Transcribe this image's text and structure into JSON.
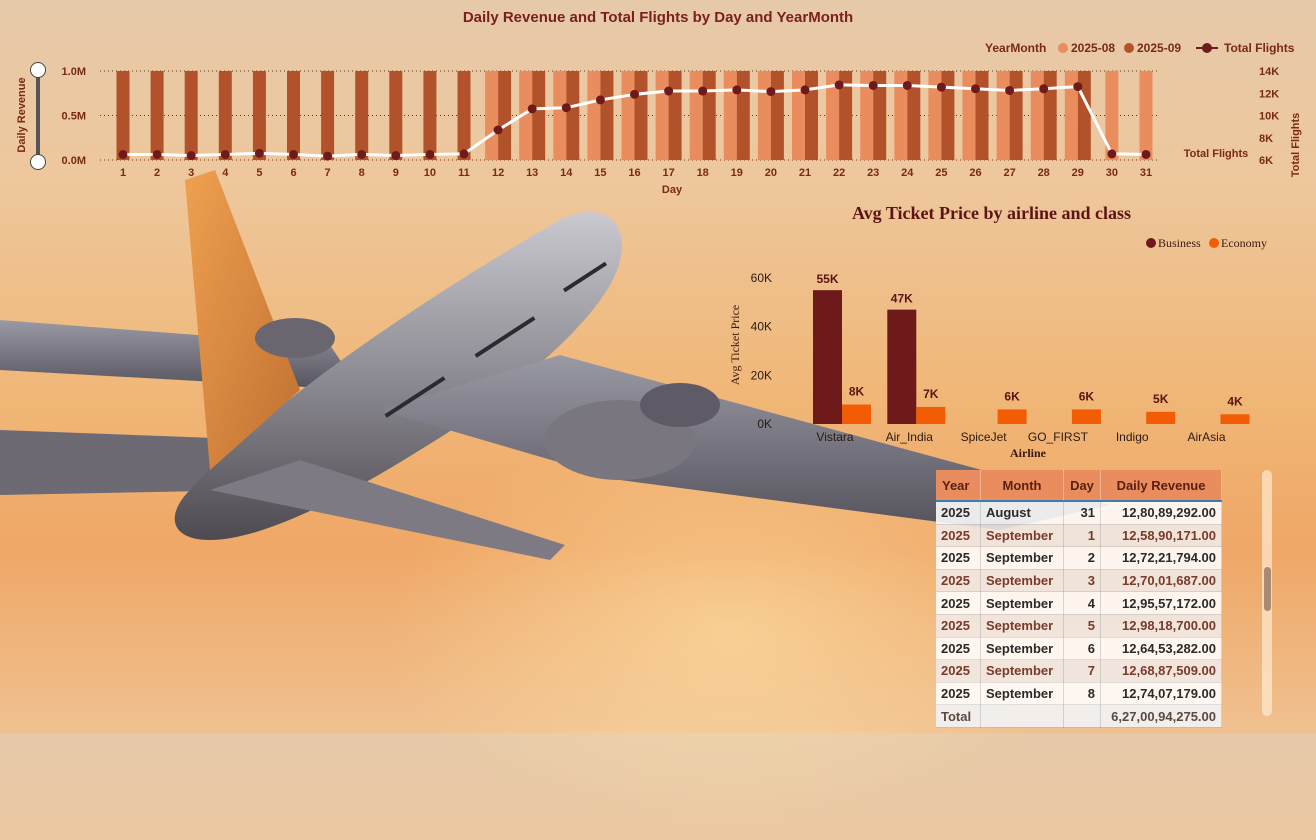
{
  "chart_data": [
    {
      "type": "combo-bar-line",
      "title": "Daily Revenue and Total Flights by Day and YearMonth",
      "xlabel": "Day",
      "ylabel": "Daily Revenue",
      "y2label": "Total Flights",
      "legend_title": "YearMonth",
      "legend": [
        "2025-08",
        "2025-09",
        "Total Flights"
      ],
      "legend_placement": "top-right",
      "line_end_label": "Total Flights",
      "categories": [
        "1",
        "2",
        "3",
        "4",
        "5",
        "6",
        "7",
        "8",
        "9",
        "10",
        "11",
        "12",
        "13",
        "14",
        "15",
        "16",
        "17",
        "18",
        "19",
        "20",
        "21",
        "22",
        "23",
        "24",
        "25",
        "26",
        "27",
        "28",
        "29",
        "30",
        "31"
      ],
      "y_ticks": [
        "0.0M",
        "0.5M",
        "1.0M"
      ],
      "y2_ticks": [
        "6K",
        "8K",
        "10K",
        "12K",
        "14K"
      ],
      "ylim": [
        0,
        1.0
      ],
      "y2lim": [
        6000,
        14000
      ],
      "series": [
        {
          "name": "2025-08",
          "color": "#e98d5e",
          "values": [
            null,
            null,
            null,
            null,
            null,
            null,
            null,
            null,
            null,
            null,
            null,
            1.28,
            1.28,
            1.28,
            1.28,
            1.28,
            1.28,
            1.28,
            1.28,
            1.28,
            1.28,
            1.28,
            1.28,
            1.28,
            1.28,
            1.28,
            1.28,
            1.28,
            1.28,
            1.28,
            1.28
          ]
        },
        {
          "name": "2025-09",
          "color": "#b2522a",
          "values": [
            1.26,
            1.27,
            1.27,
            1.3,
            1.3,
            1.26,
            1.27,
            1.27,
            1.27,
            1.28,
            1.28,
            1.28,
            1.28,
            1.28,
            1.28,
            1.28,
            1.28,
            1.28,
            1.28,
            1.28,
            1.28,
            1.28,
            1.28,
            1.28,
            1.28,
            1.28,
            1.28,
            1.28,
            1.28,
            null,
            null
          ]
        },
        {
          "name": "Total Flights",
          "color": "#6e1a1a",
          "values": [
            6500,
            6500,
            6400,
            6500,
            6600,
            6500,
            6350,
            6500,
            6400,
            6500,
            6550,
            8700,
            10600,
            10700,
            11400,
            11900,
            12200,
            12200,
            12300,
            12150,
            12300,
            12750,
            12700,
            12700,
            12550,
            12400,
            12250,
            12400,
            12600,
            6550,
            6500
          ]
        }
      ]
    },
    {
      "type": "bar",
      "title": "Avg Ticket Price by airline and class",
      "xlabel": "Airline",
      "ylabel": "Avg Ticket Price",
      "legend": [
        "Business",
        "Economy"
      ],
      "legend_placement": "top-right",
      "categories": [
        "Vistara",
        "Air_India",
        "SpiceJet",
        "GO_FIRST",
        "Indigo",
        "AirAsia"
      ],
      "y_ticks": [
        "0K",
        "20K",
        "40K",
        "60K"
      ],
      "ylim": [
        0,
        60000
      ],
      "series": [
        {
          "name": "Business",
          "color": "#6e1a1a",
          "values": [
            55000,
            47000,
            null,
            null,
            null,
            null
          ],
          "labels": [
            "55K",
            "47K",
            "",
            "",
            "",
            ""
          ]
        },
        {
          "name": "Economy",
          "color": "#f25c05",
          "values": [
            8000,
            7000,
            6000,
            6000,
            5000,
            4000
          ],
          "labels": [
            "8K",
            "7K",
            "6K",
            "6K",
            "5K",
            "4K"
          ]
        }
      ]
    }
  ],
  "table": {
    "headers": [
      "Year",
      "Month",
      "Day",
      "Daily Revenue"
    ],
    "rows": [
      [
        "2025",
        "August",
        "31",
        "12,80,89,292.00"
      ],
      [
        "2025",
        "September",
        "1",
        "12,58,90,171.00"
      ],
      [
        "2025",
        "September",
        "2",
        "12,72,21,794.00"
      ],
      [
        "2025",
        "September",
        "3",
        "12,70,01,687.00"
      ],
      [
        "2025",
        "September",
        "4",
        "12,95,57,172.00"
      ],
      [
        "2025",
        "September",
        "5",
        "12,98,18,700.00"
      ],
      [
        "2025",
        "September",
        "6",
        "12,64,53,282.00"
      ],
      [
        "2025",
        "September",
        "7",
        "12,68,87,509.00"
      ],
      [
        "2025",
        "September",
        "8",
        "12,74,07,179.00"
      ]
    ],
    "total_label": "Total",
    "total_value": "6,27,00,94,275.00"
  }
}
